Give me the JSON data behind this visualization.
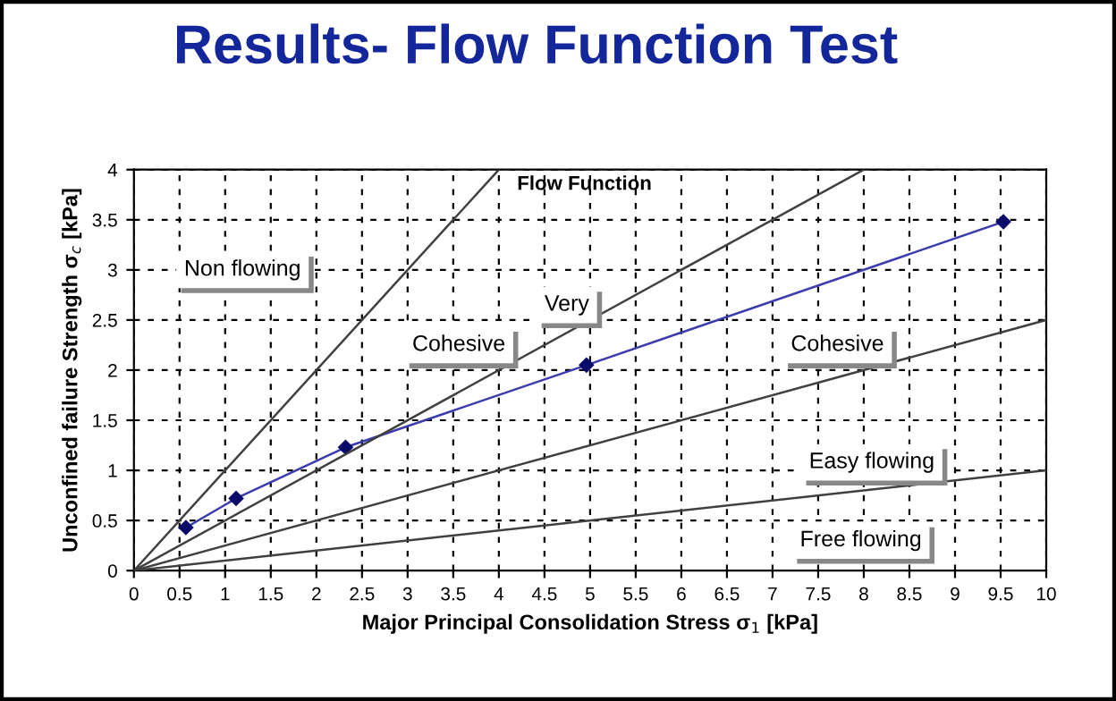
{
  "chart_data": {
    "type": "line",
    "title": "Results- Flow Function Test",
    "subtitle": "Flow Function",
    "xlabel": "Major Principal Consolidation Stress σ$_{1}$ [kPa]",
    "ylabel": "Unconfined failure Strength σ$_{c}$ [kPa]",
    "annotations": [
      "Non flowing",
      "Very",
      "Cohesive",
      "Cohesive",
      "Easy flowing",
      "Free flowing"
    ],
    "series": [
      {
        "color": "#3c3cb0",
        "marker": "diamond",
        "x": [
          0.57,
          1.12,
          2.32,
          4.96,
          9.53
        ],
        "values": [
          0.43,
          0.72,
          1.23,
          2.05,
          3.48
        ]
      },
      {
        "color": "#404040",
        "marker": "none",
        "x": [
          0,
          4
        ],
        "values": [
          0,
          4
        ]
      },
      {
        "color": "#404040",
        "marker": "none",
        "x": [
          0,
          8
        ],
        "values": [
          0,
          4
        ]
      },
      {
        "color": "#404040",
        "marker": "none",
        "x": [
          0,
          10
        ],
        "values": [
          0,
          2.5
        ]
      },
      {
        "color": "#404040",
        "marker": "none",
        "x": [
          0,
          10
        ],
        "values": [
          0,
          1
        ]
      }
    ],
    "xlim": [
      0,
      10
    ],
    "ylim": [
      0,
      4
    ],
    "xticks": [
      0,
      0.5,
      1,
      1.5,
      2,
      2.5,
      3,
      3.5,
      4,
      4.5,
      5,
      5.5,
      6,
      6.5,
      7,
      7.5,
      8,
      8.5,
      9,
      9.5,
      10
    ],
    "yticks": [
      0,
      0.5,
      1,
      1.5,
      2,
      2.5,
      3,
      3.5,
      4
    ],
    "grid": true,
    "line_style": "solid",
    "legend": false
  }
}
